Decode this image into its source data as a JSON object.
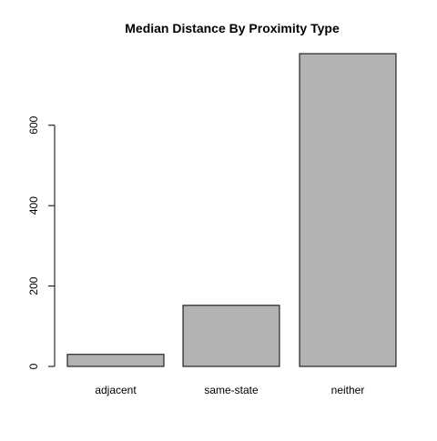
{
  "chart_data": {
    "type": "bar",
    "title": "Median Distance By Proximity Type",
    "xlabel": "",
    "ylabel": "",
    "categories": [
      "adjacent",
      "same-state",
      "neither"
    ],
    "values": [
      30,
      152,
      778
    ],
    "ylim": [
      0,
      778
    ],
    "yticks": [
      0,
      200,
      400,
      600
    ],
    "ytick_labels": [
      "0",
      "200",
      "400",
      "600"
    ],
    "grid": false,
    "legend": "none",
    "colors": {
      "bar_fill": "#b3b3b3",
      "bar_stroke": "#000000",
      "axis": "#000000",
      "background": "#ffffff"
    }
  }
}
